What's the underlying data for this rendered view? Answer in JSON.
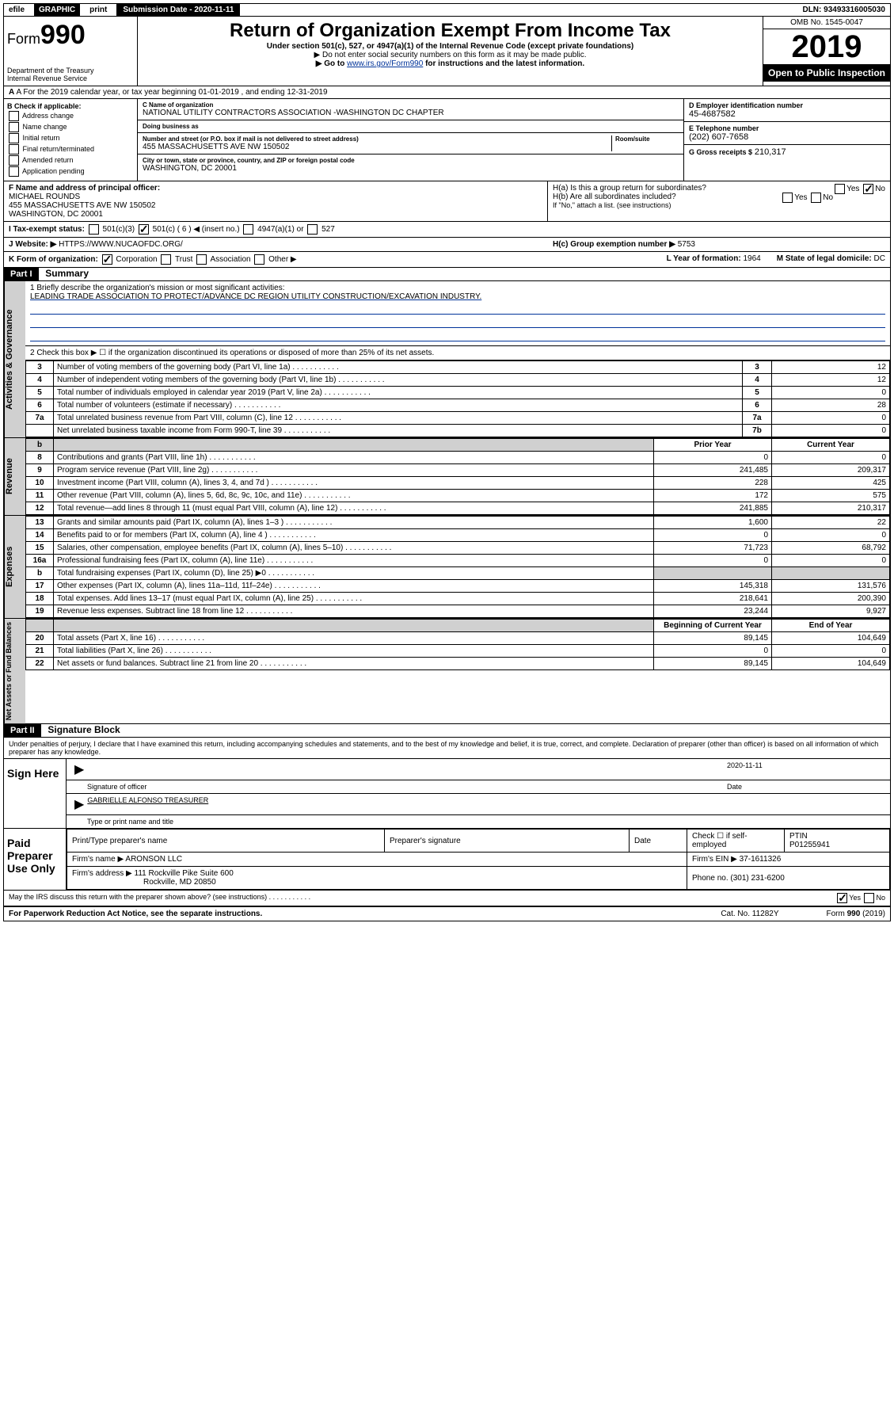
{
  "topbar": {
    "efile": "efile",
    "graphic": "GRAPHIC",
    "print": "print",
    "subdate_label": "Submission Date - 2020-11-11",
    "dln": "DLN: 93493316005030"
  },
  "header": {
    "form_prefix": "Form",
    "form_num": "990",
    "dept": "Department of the Treasury",
    "irs": "Internal Revenue Service",
    "title": "Return of Organization Exempt From Income Tax",
    "subtitle": "Under section 501(c), 527, or 4947(a)(1) of the Internal Revenue Code (except private foundations)",
    "note1": "▶ Do not enter social security numbers on this form as it may be made public.",
    "note2_pre": "▶ Go to ",
    "note2_link": "www.irs.gov/Form990",
    "note2_post": " for instructions and the latest information.",
    "omb": "OMB No. 1545-0047",
    "year": "2019",
    "open": "Open to Public Inspection"
  },
  "rowA": "A For the 2019 calendar year, or tax year beginning 01-01-2019   , and ending 12-31-2019",
  "boxB": {
    "label": "B Check if applicable:",
    "items": [
      "Address change",
      "Name change",
      "Initial return",
      "Final return/terminated",
      "Amended return",
      "Application pending"
    ]
  },
  "boxC": {
    "name_label": "C Name of organization",
    "name": "NATIONAL UTILITY CONTRACTORS ASSOCIATION -WASHINGTON DC CHAPTER",
    "dba_label": "Doing business as",
    "dba": "",
    "addr_label": "Number and street (or P.O. box if mail is not delivered to street address)",
    "room_label": "Room/suite",
    "addr": "455 MASSACHUSETTS AVE NW 150502",
    "city_label": "City or town, state or province, country, and ZIP or foreign postal code",
    "city": "WASHINGTON, DC  20001"
  },
  "boxD": {
    "label": "D Employer identification number",
    "value": "45-4687582"
  },
  "boxE": {
    "label": "E Telephone number",
    "value": "(202) 607-7658"
  },
  "boxG": {
    "label": "G Gross receipts $",
    "value": "210,317"
  },
  "boxF": {
    "label": "F Name and address of principal officer:",
    "name": "MICHAEL ROUNDS",
    "addr1": "455 MASSACHUSETTS AVE NW 150502",
    "addr2": "WASHINGTON, DC  20001"
  },
  "boxH": {
    "ha": "H(a)  Is this a group return for subordinates?",
    "hb": "H(b)  Are all subordinates included?",
    "hb_note": "If \"No,\" attach a list. (see instructions)",
    "hc": "H(c)  Group exemption number ▶",
    "hc_val": "5753",
    "yes": "Yes",
    "no": "No"
  },
  "rowI": {
    "label": "I  Tax-exempt status:",
    "opts": [
      "501(c)(3)",
      "501(c) ( 6 ) ◀ (insert no.)",
      "4947(a)(1) or",
      "527"
    ]
  },
  "rowJ": {
    "label": "J  Website: ▶",
    "value": "HTTPS://WWW.NUCAOFDC.ORG/"
  },
  "rowK": {
    "label": "K Form of organization:",
    "opts": [
      "Corporation",
      "Trust",
      "Association",
      "Other ▶"
    ],
    "l_label": "L Year of formation:",
    "l_val": "1964",
    "m_label": "M State of legal domicile:",
    "m_val": "DC"
  },
  "part1": {
    "hdr": "Part I",
    "title": "Summary",
    "q1_label": "1  Briefly describe the organization's mission or most significant activities:",
    "q1_val": "LEADING TRADE ASSOCIATION TO PROTECT/ADVANCE DC REGION UTILITY CONSTRUCTION/EXCAVATION INDUSTRY.",
    "q2": "2   Check this box ▶ ☐  if the organization discontinued its operations or disposed of more than 25% of its net assets.",
    "sections": {
      "gov": "Activities & Governance",
      "rev": "Revenue",
      "exp": "Expenses",
      "net": "Net Assets or Fund Balances"
    },
    "rows_gov": [
      {
        "n": "3",
        "d": "Number of voting members of the governing body (Part VI, line 1a)",
        "box": "3",
        "v": "12"
      },
      {
        "n": "4",
        "d": "Number of independent voting members of the governing body (Part VI, line 1b)",
        "box": "4",
        "v": "12"
      },
      {
        "n": "5",
        "d": "Total number of individuals employed in calendar year 2019 (Part V, line 2a)",
        "box": "5",
        "v": "0"
      },
      {
        "n": "6",
        "d": "Total number of volunteers (estimate if necessary)",
        "box": "6",
        "v": "28"
      },
      {
        "n": "7a",
        "d": "Total unrelated business revenue from Part VIII, column (C), line 12",
        "box": "7a",
        "v": "0"
      },
      {
        "n": "",
        "d": "Net unrelated business taxable income from Form 990-T, line 39",
        "box": "7b",
        "v": "0"
      }
    ],
    "col_hdrs": {
      "py": "Prior Year",
      "cy": "Current Year"
    },
    "rows_rev": [
      {
        "n": "8",
        "d": "Contributions and grants (Part VIII, line 1h)",
        "py": "0",
        "cy": "0"
      },
      {
        "n": "9",
        "d": "Program service revenue (Part VIII, line 2g)",
        "py": "241,485",
        "cy": "209,317"
      },
      {
        "n": "10",
        "d": "Investment income (Part VIII, column (A), lines 3, 4, and 7d )",
        "py": "228",
        "cy": "425"
      },
      {
        "n": "11",
        "d": "Other revenue (Part VIII, column (A), lines 5, 6d, 8c, 9c, 10c, and 11e)",
        "py": "172",
        "cy": "575"
      },
      {
        "n": "12",
        "d": "Total revenue—add lines 8 through 11 (must equal Part VIII, column (A), line 12)",
        "py": "241,885",
        "cy": "210,317"
      }
    ],
    "rows_exp": [
      {
        "n": "13",
        "d": "Grants and similar amounts paid (Part IX, column (A), lines 1–3 )",
        "py": "1,600",
        "cy": "22"
      },
      {
        "n": "14",
        "d": "Benefits paid to or for members (Part IX, column (A), line 4 )",
        "py": "0",
        "cy": "0"
      },
      {
        "n": "15",
        "d": "Salaries, other compensation, employee benefits (Part IX, column (A), lines 5–10)",
        "py": "71,723",
        "cy": "68,792"
      },
      {
        "n": "16a",
        "d": "Professional fundraising fees (Part IX, column (A), line 11e)",
        "py": "0",
        "cy": "0"
      },
      {
        "n": "b",
        "d": "Total fundraising expenses (Part IX, column (D), line 25) ▶0",
        "py": "",
        "cy": ""
      },
      {
        "n": "17",
        "d": "Other expenses (Part IX, column (A), lines 11a–11d, 11f–24e)",
        "py": "145,318",
        "cy": "131,576"
      },
      {
        "n": "18",
        "d": "Total expenses. Add lines 13–17 (must equal Part IX, column (A), line 25)",
        "py": "218,641",
        "cy": "200,390"
      },
      {
        "n": "19",
        "d": "Revenue less expenses. Subtract line 18 from line 12",
        "py": "23,244",
        "cy": "9,927"
      }
    ],
    "col_hdrs2": {
      "py": "Beginning of Current Year",
      "cy": "End of Year"
    },
    "rows_net": [
      {
        "n": "20",
        "d": "Total assets (Part X, line 16)",
        "py": "89,145",
        "cy": "104,649"
      },
      {
        "n": "21",
        "d": "Total liabilities (Part X, line 26)",
        "py": "0",
        "cy": "0"
      },
      {
        "n": "22",
        "d": "Net assets or fund balances. Subtract line 21 from line 20",
        "py": "89,145",
        "cy": "104,649"
      }
    ]
  },
  "part2": {
    "hdr": "Part II",
    "title": "Signature Block",
    "declare": "Under penalties of perjury, I declare that I have examined this return, including accompanying schedules and statements, and to the best of my knowledge and belief, it is true, correct, and complete. Declaration of preparer (other than officer) is based on all information of which preparer has any knowledge.",
    "sign_here": "Sign Here",
    "sig_officer": "Signature of officer",
    "sig_date": "2020-11-11",
    "date_label": "Date",
    "officer_name": "GABRIELLE ALFONSO TREASURER",
    "type_label": "Type or print name and title",
    "paid": "Paid Preparer Use Only",
    "prep_name_label": "Print/Type preparer's name",
    "prep_sig_label": "Preparer's signature",
    "prep_date_label": "Date",
    "check_self": "Check ☐ if self-employed",
    "ptin_label": "PTIN",
    "ptin": "P01255941",
    "firm_name_label": "Firm's name    ▶",
    "firm_name": "ARONSON LLC",
    "firm_ein_label": "Firm's EIN ▶",
    "firm_ein": "37-1611326",
    "firm_addr_label": "Firm's address ▶",
    "firm_addr1": "111 Rockville Pike Suite 600",
    "firm_addr2": "Rockville, MD  20850",
    "phone_label": "Phone no.",
    "phone": "(301) 231-6200",
    "discuss": "May the IRS discuss this return with the preparer shown above? (see instructions)",
    "yes": "Yes",
    "no": "No"
  },
  "footer": {
    "pra": "For Paperwork Reduction Act Notice, see the separate instructions.",
    "cat": "Cat. No. 11282Y",
    "form": "Form 990 (2019)"
  }
}
